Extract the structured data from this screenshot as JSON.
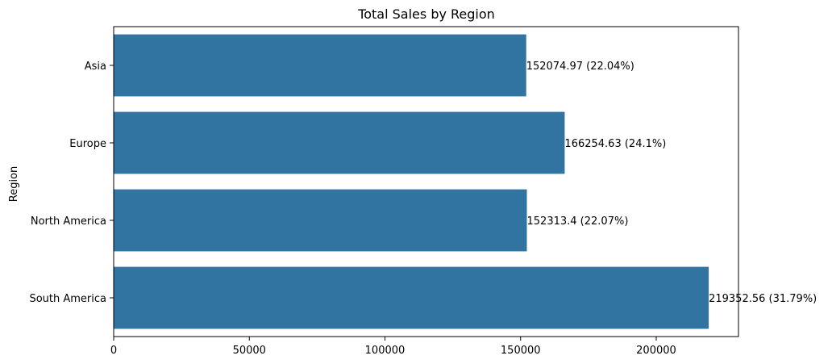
{
  "chart_data": {
    "type": "bar",
    "orientation": "horizontal",
    "title": "Total Sales by Region",
    "xlabel": "",
    "ylabel": "Region",
    "categories": [
      "Asia",
      "Europe",
      "North America",
      "South America"
    ],
    "values": [
      152074.97,
      166254.63,
      152313.4,
      219352.56
    ],
    "data_labels": [
      "152074.97 (22.04%)",
      "166254.63 (24.1%)",
      "152313.4 (22.07%)",
      "219352.56 (31.79%)"
    ],
    "xlim": [
      0,
      230320
    ],
    "xticks": [
      0,
      50000,
      100000,
      150000,
      200000
    ],
    "xtick_labels": [
      "0",
      "50000",
      "100000",
      "150000",
      "200000"
    ],
    "bar_color": "#3274a1",
    "grid": false,
    "legend": "none"
  }
}
